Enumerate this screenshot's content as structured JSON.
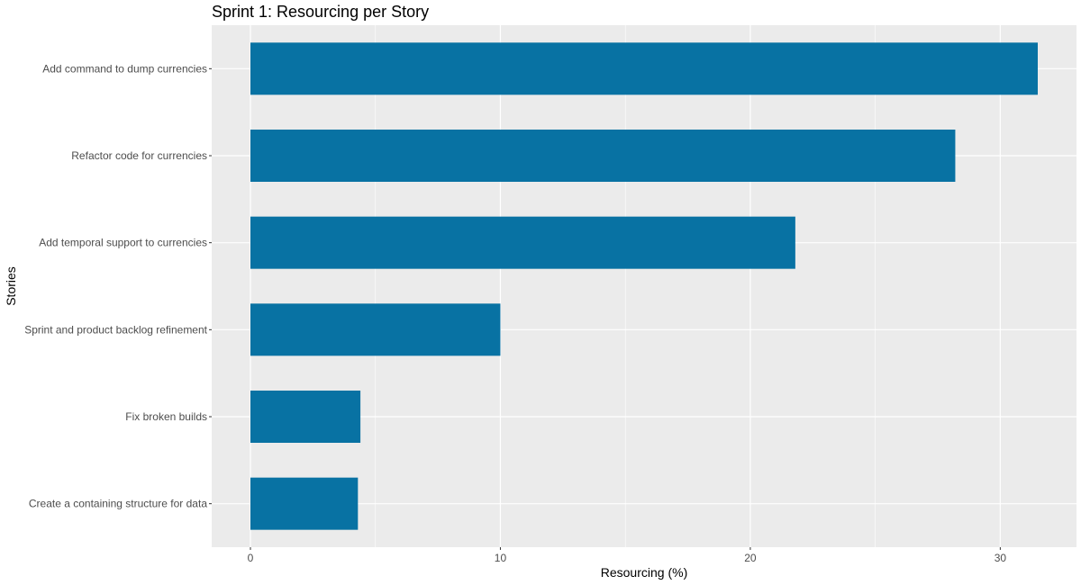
{
  "chart_data": {
    "type": "bar",
    "orientation": "horizontal",
    "title": "Sprint 1: Resourcing per Story",
    "xlabel": "Resourcing (%)",
    "ylabel": "Stories",
    "categories": [
      "Add command to dump currencies",
      "Refactor code for currencies",
      "Add temporal support to currencies",
      "Sprint and product backlog refinement",
      "Fix broken builds",
      "Create a containing structure for data"
    ],
    "values": [
      31.5,
      28.2,
      21.8,
      10.0,
      4.4,
      4.3
    ],
    "xlim": [
      -1.55,
      33.05
    ],
    "xticks": [
      0,
      10,
      20,
      30
    ],
    "grid": true,
    "legend": "none",
    "colors": {
      "bar": "#0872A3",
      "panel": "#EBEBEB",
      "grid": "#FFFFFF",
      "tick": "#333333"
    }
  }
}
